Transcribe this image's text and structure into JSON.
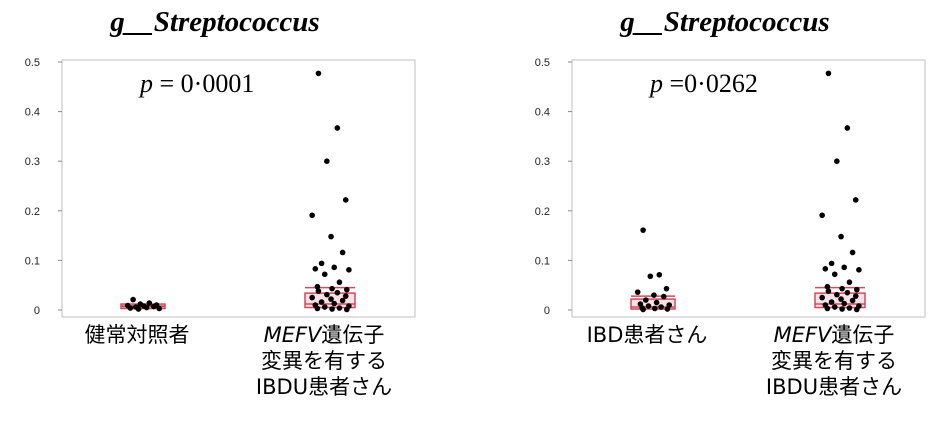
{
  "chart_data": [
    {
      "type": "scatter",
      "title": "g__Streptococcus",
      "annotation": {
        "prefix": "p",
        "text": " = 0·0001"
      },
      "ylim": [
        0,
        0.5
      ],
      "yticks": [
        "0",
        "0.1",
        "0.2",
        "0.3",
        "0.4",
        "0.5"
      ],
      "categories": [
        {
          "lines": [
            "健常対照者"
          ],
          "italic_prefix": ""
        },
        {
          "lines": [
            "遺伝子",
            "変異を有する",
            "IBDU患者さん"
          ],
          "italic_prefix": "MEFV"
        }
      ],
      "series": [
        {
          "category_index": 0,
          "box": {
            "q1": 0.003,
            "median": 0.007,
            "q3": 0.012,
            "mean": 0.008
          },
          "points": [
            0.021,
            0.014,
            0.012,
            0.01,
            0.009,
            0.008,
            0.007,
            0.006,
            0.005,
            0.004,
            0.003,
            0.002
          ]
        },
        {
          "category_index": 1,
          "box": {
            "q1": 0.005,
            "median": 0.012,
            "q3": 0.034,
            "mean": 0.045
          },
          "points": [
            0.477,
            0.367,
            0.3,
            0.222,
            0.191,
            0.148,
            0.116,
            0.094,
            0.086,
            0.083,
            0.081,
            0.072,
            0.056,
            0.047,
            0.043,
            0.041,
            0.038,
            0.035,
            0.031,
            0.028,
            0.025,
            0.022,
            0.019,
            0.016,
            0.013,
            0.01,
            0.008,
            0.006,
            0.004,
            0.003,
            0.002,
            0.001
          ]
        }
      ]
    },
    {
      "type": "scatter",
      "title": "g__Streptococcus",
      "annotation": {
        "prefix": "p",
        "text": " =0·0262"
      },
      "ylim": [
        0,
        0.5
      ],
      "yticks": [
        "0",
        "0.1",
        "0.2",
        "0.3",
        "0.4",
        "0.5"
      ],
      "categories": [
        {
          "lines": [
            "IBD患者さん"
          ],
          "italic_prefix": ""
        },
        {
          "lines": [
            "遺伝子",
            "変異を有する",
            "IBDU患者さん"
          ],
          "italic_prefix": "MEFV"
        }
      ],
      "series": [
        {
          "category_index": 0,
          "box": {
            "q1": 0.002,
            "median": 0.006,
            "q3": 0.022,
            "mean": 0.028
          },
          "points": [
            0.161,
            0.071,
            0.068,
            0.043,
            0.036,
            0.03,
            0.027,
            0.02,
            0.015,
            0.012,
            0.01,
            0.008,
            0.006,
            0.004,
            0.003,
            0.002,
            0.001
          ]
        },
        {
          "category_index": 1,
          "box": {
            "q1": 0.005,
            "median": 0.012,
            "q3": 0.034,
            "mean": 0.045
          },
          "points": [
            0.477,
            0.367,
            0.3,
            0.222,
            0.191,
            0.148,
            0.116,
            0.094,
            0.086,
            0.083,
            0.081,
            0.072,
            0.056,
            0.047,
            0.043,
            0.041,
            0.038,
            0.035,
            0.031,
            0.028,
            0.025,
            0.022,
            0.019,
            0.016,
            0.013,
            0.01,
            0.008,
            0.006,
            0.004,
            0.003,
            0.002,
            0.001
          ]
        }
      ]
    }
  ],
  "colors": {
    "box": "#d24a5c",
    "box_fill": "#f3c9cf",
    "point": "#000000",
    "frame": "#bfbfbf"
  }
}
